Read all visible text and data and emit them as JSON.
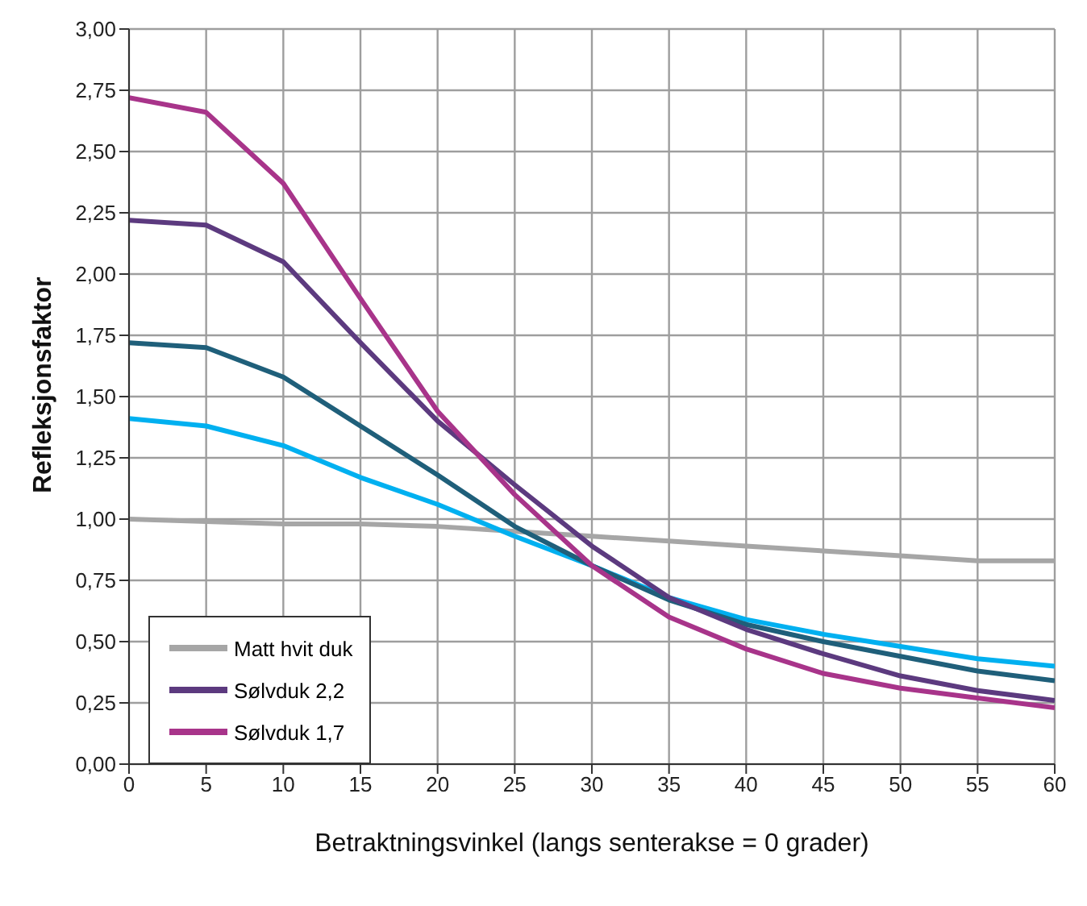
{
  "chart_data": {
    "type": "line",
    "xlabel": "Betraktningsvinkel (langs senterakse = 0 grader)",
    "ylabel": "Refleksjonsfaktor",
    "x": [
      0,
      5,
      10,
      15,
      20,
      25,
      30,
      35,
      40,
      45,
      50,
      55,
      60
    ],
    "series": [
      {
        "name": "Matt hvit duk",
        "color": "#a6a6a6",
        "values": [
          1.0,
          0.99,
          0.98,
          0.98,
          0.97,
          0.95,
          0.93,
          0.91,
          0.89,
          0.87,
          0.85,
          0.83,
          0.83
        ]
      },
      {
        "color": "#00b0f0",
        "values": [
          1.41,
          1.38,
          1.3,
          1.17,
          1.06,
          0.93,
          0.81,
          0.68,
          0.59,
          0.53,
          0.48,
          0.43,
          0.4
        ]
      },
      {
        "color": "#1f5f7a",
        "values": [
          1.72,
          1.7,
          1.58,
          1.38,
          1.18,
          0.97,
          0.81,
          0.67,
          0.57,
          0.5,
          0.44,
          0.38,
          0.34
        ]
      },
      {
        "name": "Sølvduk 2,2",
        "color": "#5c3a7f",
        "values": [
          2.22,
          2.2,
          2.05,
          1.72,
          1.4,
          1.14,
          0.89,
          0.68,
          0.55,
          0.45,
          0.36,
          0.3,
          0.26
        ]
      },
      {
        "name": "Sølvduk 1,7",
        "color": "#a8348a",
        "values": [
          2.72,
          2.66,
          2.37,
          1.9,
          1.44,
          1.1,
          0.81,
          0.6,
          0.47,
          0.37,
          0.31,
          0.27,
          0.23
        ]
      }
    ],
    "xlim": [
      0,
      60
    ],
    "xticks": [
      0,
      5,
      10,
      15,
      20,
      25,
      30,
      35,
      40,
      45,
      50,
      55,
      60
    ],
    "ylim": [
      0,
      3
    ],
    "yticks": [
      {
        "value": 0,
        "label": "0,00"
      },
      {
        "value": 0.25,
        "label": "0,25"
      },
      {
        "value": 0.5,
        "label": "0,50"
      },
      {
        "value": 0.75,
        "label": "0,75"
      },
      {
        "value": 1,
        "label": "1,00"
      },
      {
        "value": 1.25,
        "label": "1,25"
      },
      {
        "value": 1.5,
        "label": "1,50"
      },
      {
        "value": 1.75,
        "label": "1,75"
      },
      {
        "value": 2,
        "label": "2,00"
      },
      {
        "value": 2.25,
        "label": "2,25"
      },
      {
        "value": 2.5,
        "label": "2,50"
      },
      {
        "value": 2.75,
        "label": "2,75"
      },
      {
        "value": 3,
        "label": "3,00"
      }
    ],
    "grid": true,
    "legend": "bottom left",
    "marker": "none",
    "line_style": "solid"
  }
}
